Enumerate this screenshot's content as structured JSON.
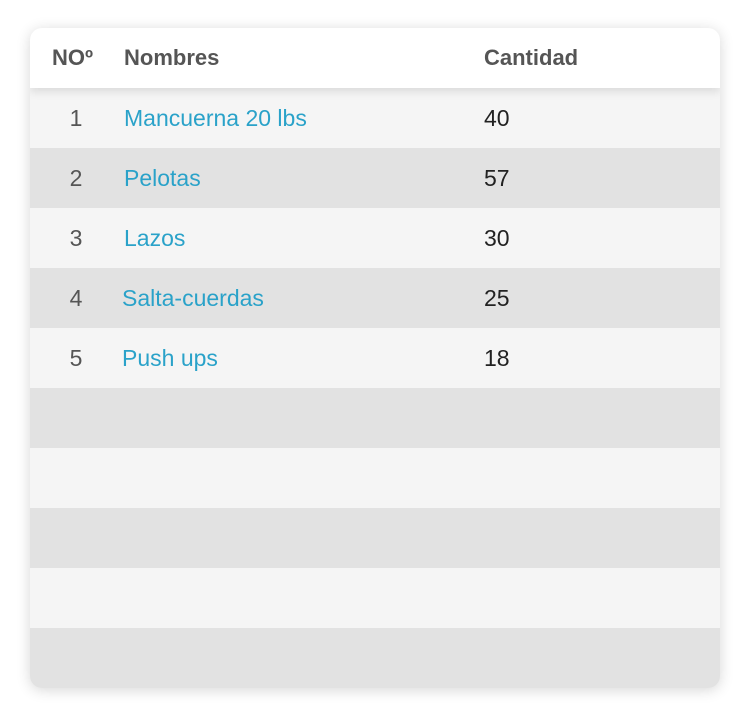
{
  "table": {
    "headers": {
      "no": "NOº",
      "name": "Nombres",
      "qty": "Cantidad"
    },
    "rows": [
      {
        "no": "1",
        "name": "Mancuerna 20 lbs",
        "qty": "40"
      },
      {
        "no": "2",
        "name": "Pelotas",
        "qty": "57"
      },
      {
        "no": "3",
        "name": "Lazos",
        "qty": "30"
      },
      {
        "no": "4",
        "name": "Salta-cuerdas",
        "qty": "25"
      },
      {
        "no": "5",
        "name": "Push ups",
        "qty": "18"
      },
      {
        "no": "",
        "name": "",
        "qty": ""
      },
      {
        "no": "",
        "name": "",
        "qty": ""
      },
      {
        "no": "",
        "name": "",
        "qty": ""
      },
      {
        "no": "",
        "name": "",
        "qty": ""
      },
      {
        "no": "",
        "name": "",
        "qty": ""
      }
    ]
  },
  "colors": {
    "link": "#2aa2c9",
    "row_light": "#f5f5f5",
    "row_dark": "#e2e2e2",
    "header_bg": "#ffffff"
  }
}
